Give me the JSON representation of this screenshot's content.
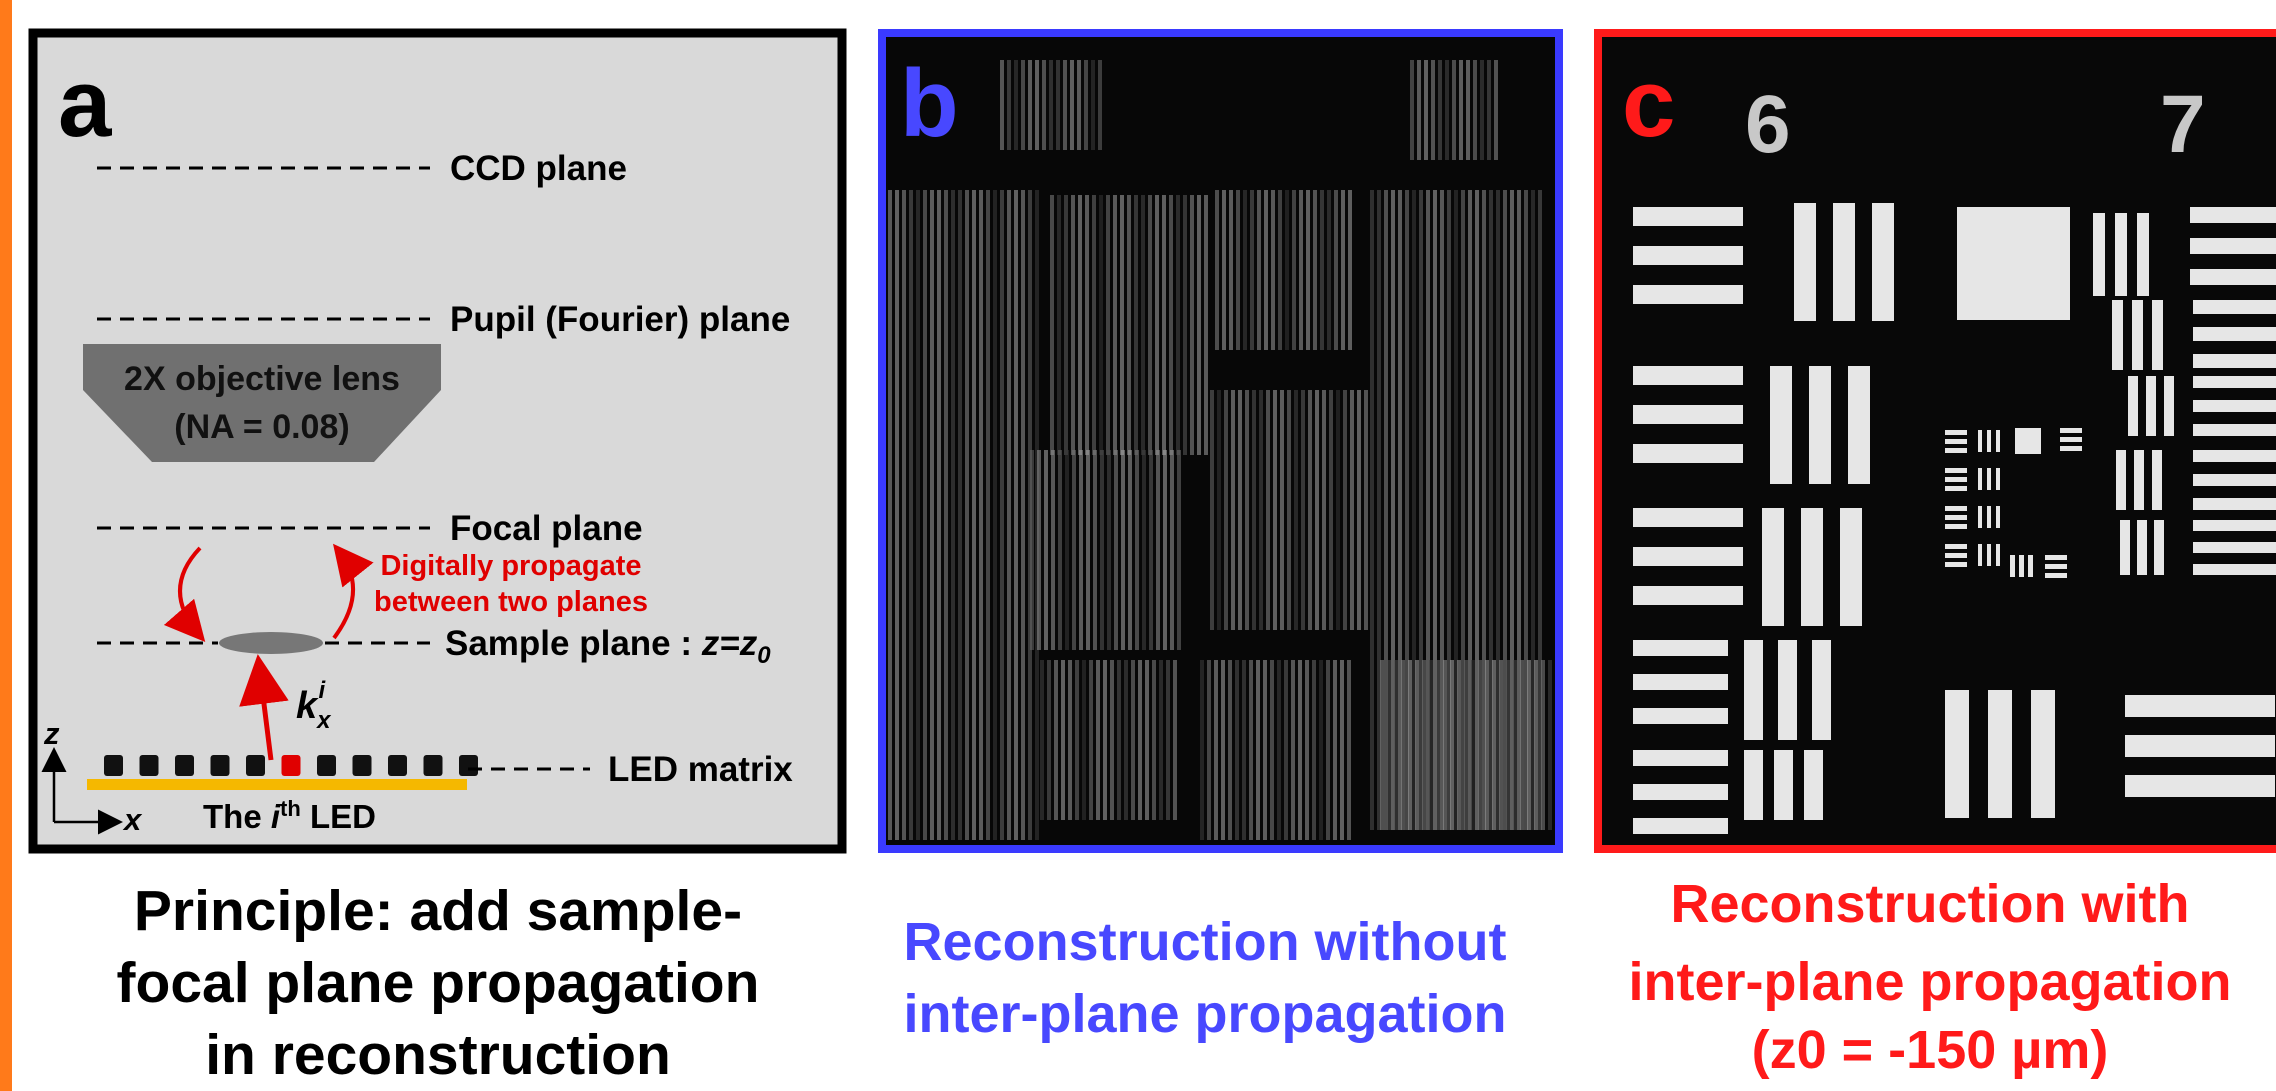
{
  "panel_a": {
    "letter": "a",
    "ccd_plane": "CCD plane",
    "pupil_plane": "Pupil (Fourier) plane",
    "lens": [
      "2X objective lens",
      "(NA = 0.08)"
    ],
    "focal_plane": "Focal plane",
    "propagate": [
      "Digitally propagate",
      "between two planes"
    ],
    "sample_plane": "Sample plane : ",
    "sample_z": "z=z",
    "sample_sub": "0",
    "k": "k",
    "k_sub": "x",
    "k_sup": "i",
    "axis_z": "z",
    "axis_x": "x",
    "led_matrix": "LED matrix",
    "led_label": [
      "The ",
      "i",
      "th",
      " LED"
    ],
    "caption": [
      "Principle: add sample-",
      "focal plane propagation",
      "in reconstruction"
    ]
  },
  "panel_b": {
    "letter": "b",
    "caption": [
      "Reconstruction without",
      "inter-plane propagation"
    ]
  },
  "panel_c": {
    "letter": "c",
    "target_labels": [
      "6",
      "7"
    ],
    "caption": [
      "Reconstruction with",
      "inter-plane propagation",
      "(z0 = -150 µm)"
    ]
  }
}
